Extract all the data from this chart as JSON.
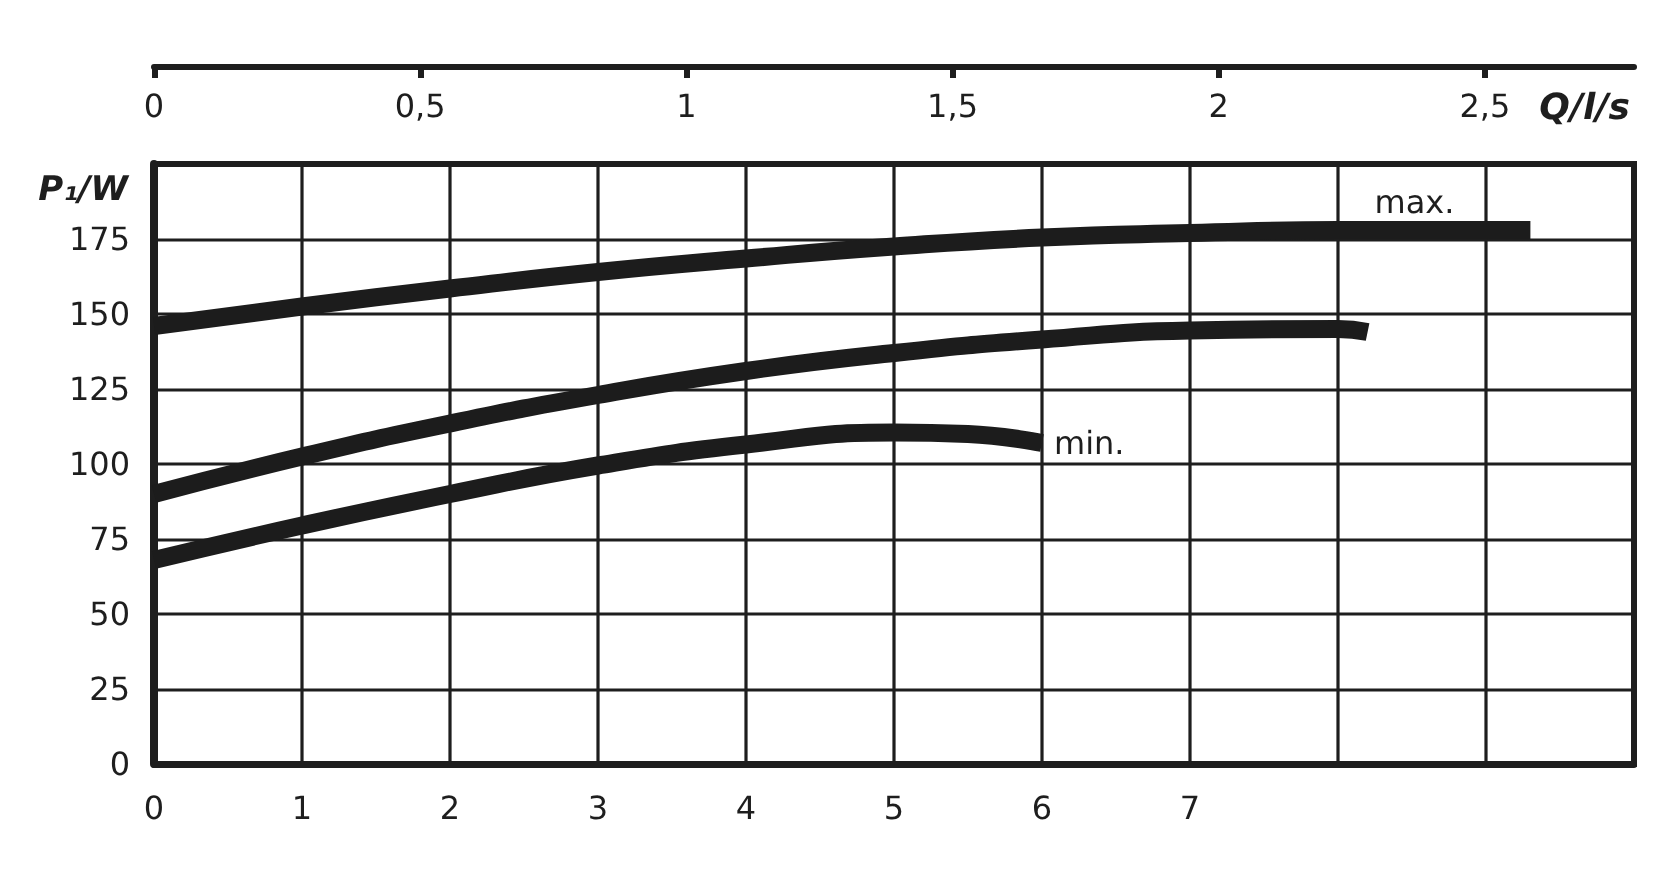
{
  "chart_data": {
    "type": "line",
    "ylabel": "P₁/W",
    "x2label": "Q/l/s",
    "xlim": [
      0,
      10
    ],
    "xticks": [
      0,
      1,
      2,
      3,
      4,
      5,
      6,
      7,
      {
        "value": 8,
        "label": null
      },
      {
        "value": 9,
        "label": null
      }
    ],
    "x2lim": [
      0,
      2.78
    ],
    "x2ticks": [
      0,
      {
        "value": 0.5,
        "label": "0,5"
      },
      1,
      {
        "value": 1.5,
        "label": "1,5"
      },
      2,
      {
        "value": 2.5,
        "label": "2,5"
      }
    ],
    "ylim": [
      0,
      200
    ],
    "yticks": [
      0,
      25,
      50,
      75,
      100,
      125,
      150,
      175
    ],
    "grid": true,
    "marker": "none",
    "line_style": "solid",
    "series": [
      {
        "name": "max.",
        "color": "#1c1c1c",
        "x": [
          0,
          1,
          2,
          3,
          4,
          5,
          6,
          7,
          8,
          9.3
        ],
        "values": [
          146,
          152.5,
          158.5,
          164,
          168.5,
          172.5,
          175.5,
          177,
          178,
          178
        ]
      },
      {
        "color": "#1c1c1c",
        "x": [
          0,
          1,
          2,
          3,
          4,
          5,
          6,
          7,
          8,
          8.2
        ],
        "values": [
          90,
          102.5,
          113.5,
          123,
          131,
          137,
          141.5,
          144.5,
          145,
          144
        ]
      },
      {
        "name": "min.",
        "color": "#1c1c1c",
        "x": [
          0,
          1,
          2,
          3,
          4,
          5,
          5.5,
          6
        ],
        "values": [
          68,
          79.5,
          90,
          99.5,
          106.5,
          110.5,
          110,
          107
        ]
      }
    ]
  }
}
